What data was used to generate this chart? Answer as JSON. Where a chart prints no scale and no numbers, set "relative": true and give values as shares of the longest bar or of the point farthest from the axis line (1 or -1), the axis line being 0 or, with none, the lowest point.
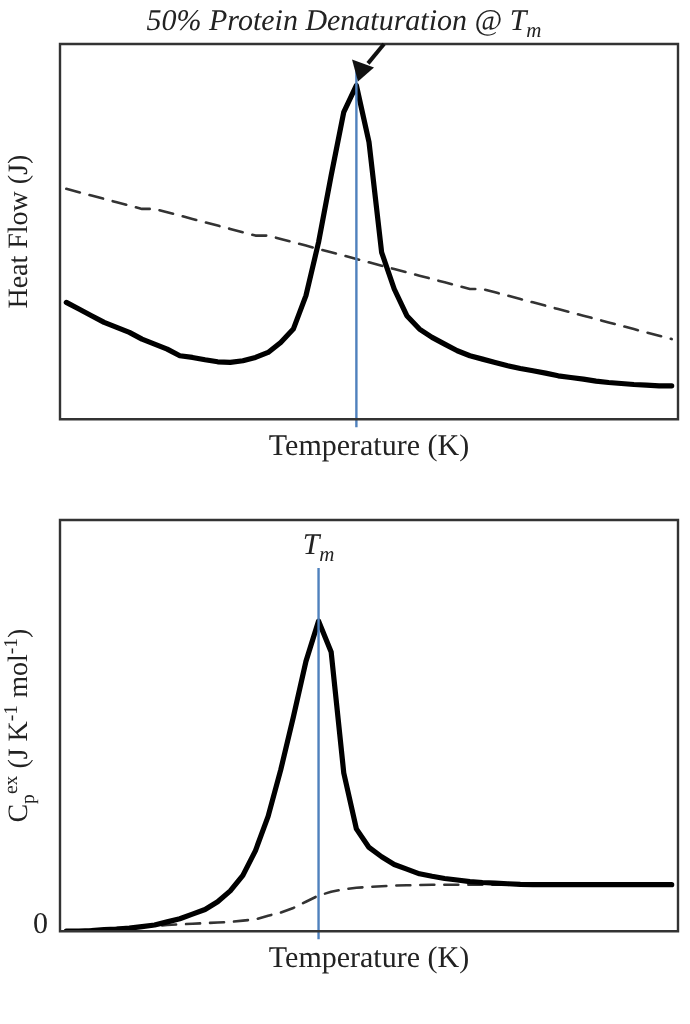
{
  "chart_data": [
    {
      "type": "line",
      "relative": true,
      "title": "50% Protein Denaturation @ T$_{m}$",
      "xlabel": "Temperature (K)",
      "ylabel": "Heat Flow (J)",
      "grid": false,
      "legend": false,
      "marker": "none",
      "categories": [
        null,
        null,
        null,
        null,
        null,
        null,
        null,
        null,
        null,
        null,
        null,
        null,
        null,
        null,
        null,
        null,
        null,
        null,
        null,
        null,
        null,
        null,
        null,
        null,
        null,
        null,
        null,
        null,
        null,
        null,
        null,
        null,
        null,
        null,
        null,
        null,
        null,
        null,
        null,
        null,
        null,
        null,
        null,
        null,
        null,
        null,
        null,
        null,
        null
      ],
      "ref_lines": [
        {
          "axis": "x",
          "color": "#4f81bd"
        }
      ],
      "series": [
        {
          "color": "#000000",
          "line_style": "solid",
          "values": [
            0.35,
            0.33,
            0.31,
            0.29,
            0.275,
            0.26,
            0.24,
            0.225,
            0.21,
            0.19,
            0.185,
            0.178,
            0.172,
            0.17,
            0.175,
            0.185,
            0.2,
            0.23,
            0.27,
            0.37,
            0.53,
            0.73,
            0.92,
            1.0,
            0.83,
            0.5,
            0.39,
            0.31,
            0.27,
            0.245,
            0.225,
            0.205,
            0.19,
            0.18,
            0.17,
            0.16,
            0.152,
            0.145,
            0.138,
            0.13,
            0.125,
            0.12,
            0.114,
            0.11,
            0.107,
            0.104,
            0.102,
            0.1,
            0.1
          ]
        },
        {
          "color": "#333333",
          "line_style": "dashed",
          "values": [
            0.69,
            0.68,
            0.67,
            0.66,
            0.65,
            0.64,
            0.63,
            0.63,
            0.62,
            0.61,
            0.6,
            0.59,
            0.58,
            0.57,
            0.56,
            0.55,
            0.55,
            0.54,
            0.53,
            0.52,
            0.51,
            0.5,
            0.49,
            0.48,
            0.47,
            0.46,
            0.45,
            0.44,
            0.43,
            0.42,
            0.41,
            0.4,
            0.39,
            0.39,
            0.38,
            0.37,
            0.36,
            0.35,
            0.34,
            0.33,
            0.32,
            0.31,
            0.3,
            0.29,
            0.28,
            0.27,
            0.26,
            0.25,
            0.24
          ]
        }
      ]
    },
    {
      "type": "line",
      "relative": true,
      "xlabel": "Temperature (K)",
      "ylabel": "C$_{p}$$^{ex}$ (J K$^{-1}$ mol$^{-1}$)",
      "grid": false,
      "legend": false,
      "marker": "none",
      "categories": [
        null,
        null,
        null,
        null,
        null,
        null,
        null,
        null,
        null,
        null,
        null,
        null,
        null,
        null,
        null,
        null,
        null,
        null,
        null,
        null,
        null,
        null,
        null,
        null,
        null,
        null,
        null,
        null,
        null,
        null,
        null,
        null,
        null,
        null,
        null,
        null,
        null,
        null,
        null,
        null,
        null,
        null,
        null,
        null,
        null,
        null,
        null,
        null,
        null
      ],
      "annotations": [
        "0"
      ],
      "ref_lines": [
        {
          "axis": "x",
          "label": "T$_{m}$",
          "color": "#4f81bd"
        }
      ],
      "series": [
        {
          "color": "#000000",
          "line_style": "solid",
          "values": [
            0,
            0,
            0.002,
            0.005,
            0.007,
            0.01,
            0.015,
            0.02,
            0.03,
            0.04,
            0.055,
            0.07,
            0.095,
            0.13,
            0.18,
            0.26,
            0.37,
            0.52,
            0.69,
            0.87,
            1.0,
            0.9,
            0.51,
            0.33,
            0.27,
            0.24,
            0.215,
            0.2,
            0.185,
            0.177,
            0.17,
            0.165,
            0.16,
            0.157,
            0.155,
            0.153,
            0.151,
            0.15,
            0.15,
            0.15,
            0.15,
            0.15,
            0.15,
            0.15,
            0.15,
            0.15,
            0.15,
            0.15,
            0.15
          ]
        },
        {
          "color": "#333333",
          "line_style": "dashed",
          "values": [
            0,
            0.002,
            0.005,
            0.007,
            0.01,
            0.012,
            0.015,
            0.017,
            0.02,
            0.022,
            0.024,
            0.026,
            0.028,
            0.03,
            0.034,
            0.038,
            0.05,
            0.06,
            0.075,
            0.095,
            0.115,
            0.127,
            0.135,
            0.14,
            0.143,
            0.145,
            0.147,
            0.148,
            0.149,
            0.15,
            0.15,
            0.15,
            0.15,
            0.15,
            0.15,
            0.15,
            0.15,
            0.15,
            0.15,
            0.15,
            0.15,
            0.15,
            0.15,
            0.15,
            0.15,
            0.15,
            0.15,
            0.15,
            0.15
          ]
        }
      ]
    }
  ]
}
